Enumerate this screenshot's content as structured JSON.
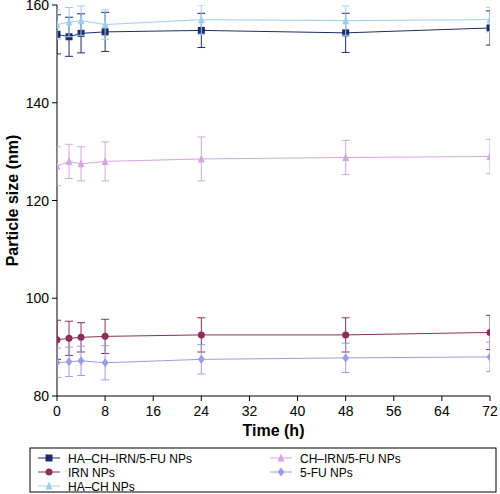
{
  "chart_data": {
    "type": "line",
    "x_label": "Time (h)",
    "y_label": "Particle size (nm)",
    "x": [
      0,
      2,
      4,
      8,
      24,
      48,
      72
    ],
    "xlim": [
      0,
      72
    ],
    "xticks": [
      0,
      8,
      16,
      24,
      32,
      40,
      48,
      56,
      64,
      72
    ],
    "ylim": [
      80,
      160
    ],
    "yticks": [
      80,
      100,
      120,
      140,
      160
    ],
    "grid": false,
    "legend": "bottom",
    "series": [
      {
        "name": "HA–CH–IRN/5-FU NPs",
        "color": "#1f2a6b",
        "marker": "square",
        "values": [
          154,
          153.5,
          154.2,
          154.5,
          154.8,
          154.3,
          155.3
        ],
        "errors": [
          4,
          4,
          4,
          4,
          3.5,
          4,
          3.5
        ]
      },
      {
        "name": "CH–IRN/5-FU NPs",
        "color": "#d4a6de",
        "marker": "triangle",
        "values": [
          127,
          128,
          127.5,
          128,
          128.5,
          128.8,
          129
        ],
        "errors": [
          4,
          3.5,
          3.5,
          4,
          4.5,
          3.5,
          3.5
        ]
      },
      {
        "name": "IRN NPs",
        "color": "#8b2f5a",
        "marker": "circle",
        "values": [
          91.5,
          91.8,
          92,
          92.2,
          92.5,
          92.5,
          93
        ],
        "errors": [
          4,
          3.5,
          3,
          3.5,
          3.5,
          3.5,
          3.5
        ]
      },
      {
        "name": "5-FU NPs",
        "color": "#9a9ee0",
        "marker": "diamond",
        "values": [
          86.8,
          87,
          87.2,
          86.8,
          87.5,
          87.8,
          88
        ],
        "errors": [
          3,
          3,
          3,
          3.5,
          3,
          3,
          3
        ]
      },
      {
        "name": "HA–CH NPs",
        "color": "#9ecff0",
        "marker": "triangle",
        "values": [
          156,
          156.5,
          156.8,
          156,
          157,
          156.8,
          157
        ],
        "errors": [
          3,
          3,
          3,
          3,
          3,
          3,
          2.5
        ]
      }
    ]
  }
}
